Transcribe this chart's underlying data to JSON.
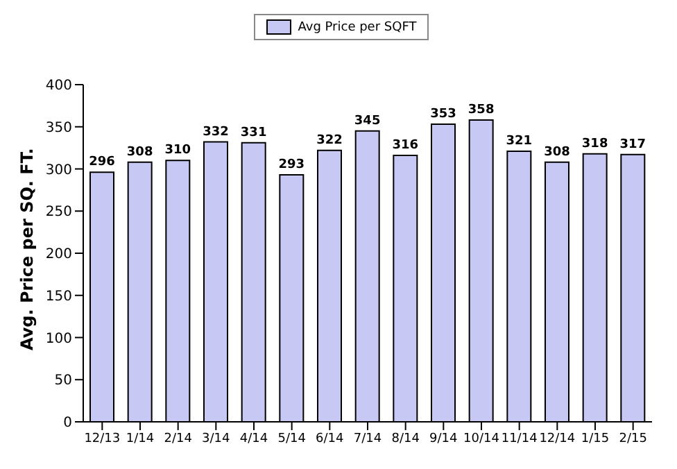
{
  "chart_data": {
    "type": "bar",
    "ylabel": "Avg. Price per SQ. FT.",
    "categories": [
      "12/13",
      "1/14",
      "2/14",
      "3/14",
      "4/14",
      "5/14",
      "6/14",
      "7/14",
      "8/14",
      "9/14",
      "10/14",
      "11/14",
      "12/14",
      "1/15",
      "2/15"
    ],
    "series": [
      {
        "name": "Avg Price per SQFT",
        "color": "#c8c8f4",
        "values": [
          296,
          308,
          310,
          332,
          331,
          293,
          322,
          345,
          316,
          353,
          358,
          321,
          308,
          318,
          317
        ]
      }
    ],
    "ylim": [
      0,
      400
    ],
    "yticks": [
      0,
      50,
      100,
      150,
      200,
      250,
      300,
      350,
      400
    ],
    "grid": false,
    "legend": "top",
    "data_labels": true
  }
}
